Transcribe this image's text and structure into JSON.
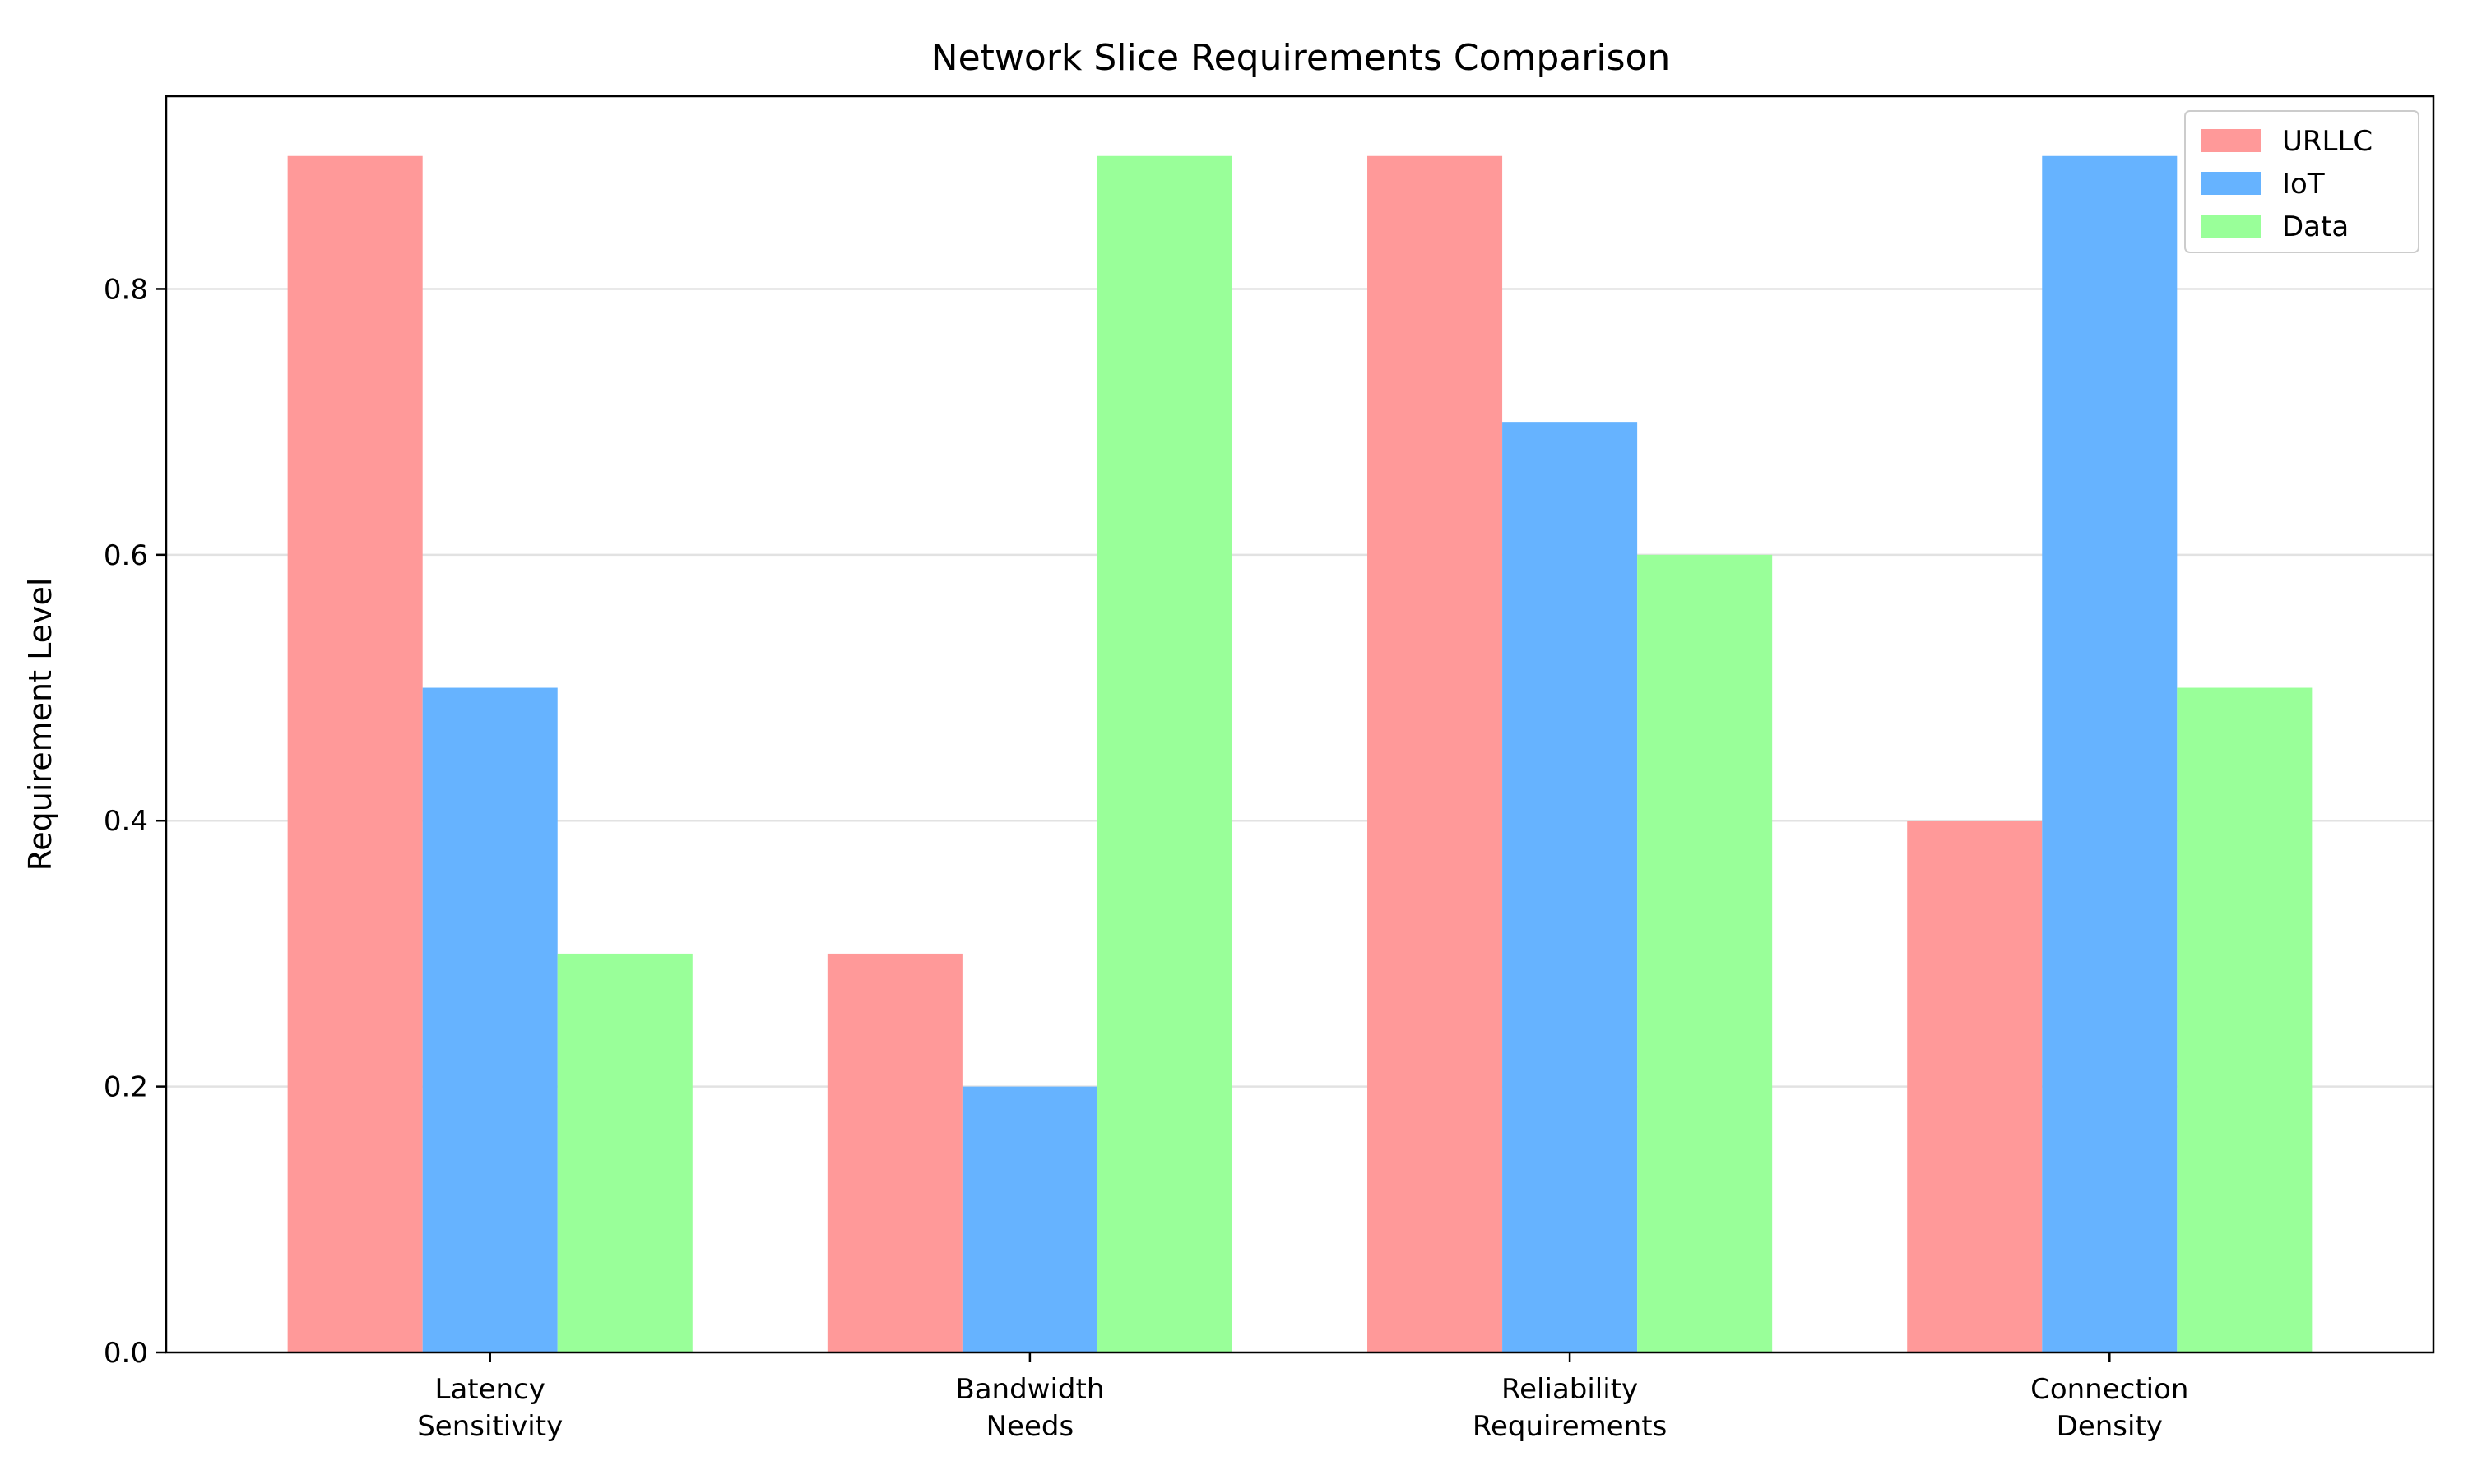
{
  "chart_data": {
    "type": "bar",
    "title": "Network Slice Requirements Comparison",
    "xlabel": "",
    "ylabel": "Requirement Level",
    "categories": [
      [
        "Latency",
        "Sensitivity"
      ],
      [
        "Bandwidth",
        "Needs"
      ],
      [
        "Reliability",
        "Requirements"
      ],
      [
        "Connection",
        "Density"
      ]
    ],
    "series": [
      {
        "name": "URLLC",
        "color": "#FF9999",
        "values": [
          0.9,
          0.3,
          0.9,
          0.4
        ]
      },
      {
        "name": "IoT",
        "color": "#66B3FF",
        "values": [
          0.5,
          0.2,
          0.7,
          0.9
        ]
      },
      {
        "name": "Data",
        "color": "#99FF99",
        "values": [
          0.3,
          0.9,
          0.6,
          0.5
        ]
      }
    ],
    "ylim": [
      0,
      0.945
    ],
    "yticks": [
      "0.0",
      "0.2",
      "0.4",
      "0.6",
      "0.8"
    ],
    "grid": "horizontal",
    "legend_position": "top-right"
  }
}
